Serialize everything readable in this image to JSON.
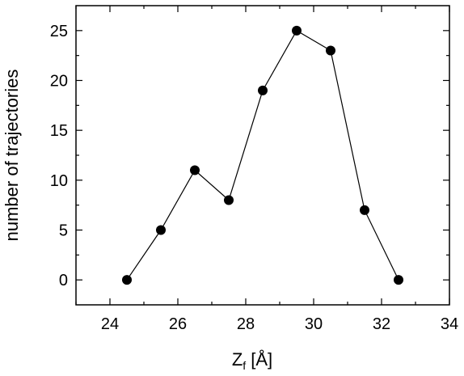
{
  "chart_data": {
    "type": "line",
    "title": "",
    "xlabel": "Z",
    "xlabel_subscript": "f",
    "xlabel_unit": " [Å]",
    "ylabel": "number of trajectories",
    "xlim": [
      23,
      34
    ],
    "ylim": [
      -2.5,
      27.5
    ],
    "xticks": [
      24,
      26,
      28,
      30,
      32,
      34
    ],
    "yticks": [
      0,
      5,
      10,
      15,
      20,
      25
    ],
    "grid": false,
    "legend": "none",
    "series": [
      {
        "x": [
          24.5,
          25.5,
          26.5,
          27.5,
          28.5,
          29.5,
          30.5,
          31.5,
          32.5
        ],
        "y": [
          0,
          5,
          11,
          8,
          19,
          25,
          23,
          7,
          0
        ],
        "color": "#000000",
        "marker": "filled-circle"
      }
    ]
  }
}
